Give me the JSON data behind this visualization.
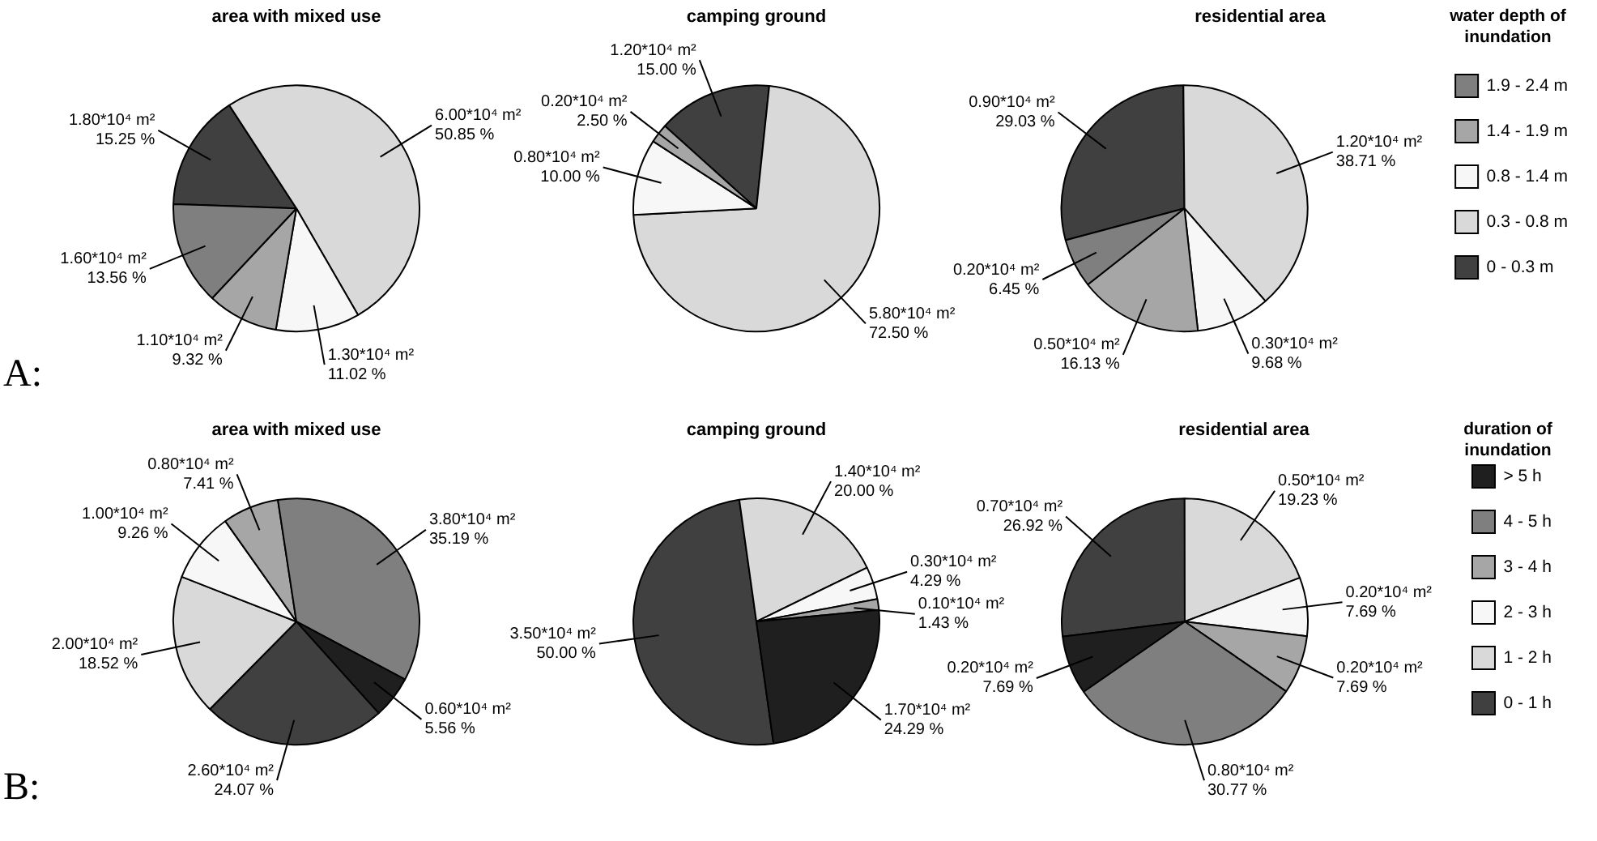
{
  "chart_data": [
    {
      "type": "pie",
      "title": "area with mixed use",
      "annotations": [
        "A:"
      ],
      "categories": [
        null,
        null,
        null,
        null,
        null
      ],
      "values": [
        1.8,
        6.0,
        1.3,
        1.1,
        1.6
      ],
      "colors": [
        "#404040",
        "#d9d9d9",
        "#f7f7f7",
        "#a6a6a6",
        "#7f7f7f"
      ],
      "value_labels": [
        "1.80*10⁴ m²\n15.25 %",
        "6.00*10⁴ m²\n50.85 %",
        "1.30*10⁴ m²\n11.02 %",
        "1.10*10⁴ m²\n9.32 %",
        "1.60*10⁴ m²\n13.56 %"
      ]
    },
    {
      "type": "pie",
      "title": "camping ground",
      "categories": [
        null,
        null,
        null,
        null,
        null
      ],
      "values": [
        1.2,
        5.8,
        0.8,
        0.2,
        0
      ],
      "colors": [
        "#404040",
        "#d9d9d9",
        "#f7f7f7",
        "#a6a6a6",
        "#7f7f7f"
      ],
      "value_labels": [
        "1.20*10⁴ m²\n15.00 %",
        "5.80*10⁴ m²\n72.50 %",
        "0.80*10⁴ m²\n10.00 %",
        "0.20*10⁴ m²\n2.50 %",
        null
      ]
    },
    {
      "type": "pie",
      "title": "residential area",
      "legend": "right",
      "legend_title": "water depth of inundation",
      "categories": [
        "0 - 0.3 m",
        "0.3 - 0.8 m",
        "0.8 - 1.4 m",
        "1.4 - 1.9 m",
        "1.9 - 2.4 m"
      ],
      "values": [
        0.9,
        1.2,
        0.3,
        0.5,
        0.2
      ],
      "colors": [
        "#404040",
        "#d9d9d9",
        "#f7f7f7",
        "#a6a6a6",
        "#7f7f7f"
      ],
      "value_labels": [
        "0.90*10⁴ m²\n29.03 %",
        "1.20*10⁴ m²\n38.71 %",
        "0.30*10⁴ m²\n9.68 %",
        "0.50*10⁴ m²\n16.13 %",
        "0.20*10⁴ m²\n6.45 %"
      ]
    },
    {
      "type": "pie",
      "title": "area with mixed use",
      "annotations": [
        "B:"
      ],
      "categories": [
        null,
        null,
        null,
        null,
        null,
        null
      ],
      "values": [
        2.6,
        2.0,
        1.0,
        0.8,
        3.8,
        0.6
      ],
      "colors": [
        "#404040",
        "#d9d9d9",
        "#f7f7f7",
        "#a6a6a6",
        "#7f7f7f",
        "#1f1f1f"
      ],
      "value_labels": [
        "2.60*10⁴ m²\n24.07 %",
        "2.00*10⁴ m²\n18.52 %",
        "1.00*10⁴ m²\n9.26 %",
        "0.80*10⁴ m²\n7.41 %",
        "3.80*10⁴ m²\n35.19 %",
        "0.60*10⁴ m²\n5.56 %"
      ]
    },
    {
      "type": "pie",
      "title": "camping ground",
      "categories": [
        null,
        null,
        null,
        null,
        null,
        null
      ],
      "values": [
        3.5,
        1.4,
        0.3,
        0.1,
        0,
        1.7
      ],
      "colors": [
        "#404040",
        "#d9d9d9",
        "#f7f7f7",
        "#a6a6a6",
        "#7f7f7f",
        "#1f1f1f"
      ],
      "value_labels": [
        "3.50*10⁴ m²\n50.00 %",
        "1.40*10⁴ m²\n20.00 %",
        "0.30*10⁴ m²\n4.29 %",
        "0.10*10⁴ m²\n1.43 %",
        null,
        "1.70*10⁴ m²\n24.29 %"
      ]
    },
    {
      "type": "pie",
      "title": "residential area",
      "legend": "right",
      "legend_title": "duration of inundation",
      "categories": [
        "0 - 1 h",
        "1 - 2 h",
        "2 - 3 h",
        "3 - 4 h",
        "4 - 5 h",
        "> 5 h"
      ],
      "values": [
        0.7,
        0.5,
        0.2,
        0.2,
        0.8,
        0.2
      ],
      "colors": [
        "#404040",
        "#d9d9d9",
        "#f7f7f7",
        "#a6a6a6",
        "#7f7f7f",
        "#1f1f1f"
      ],
      "value_labels": [
        "0.70*10⁴ m²\n26.92 %",
        "0.50*10⁴ m²\n19.23 %",
        "0.20*10⁴ m²\n7.69 %",
        "0.20*10⁴ m²\n7.69 %",
        "0.80*10⁴ m²\n30.77 %",
        "0.20*10⁴ m²\n7.69 %"
      ]
    }
  ]
}
